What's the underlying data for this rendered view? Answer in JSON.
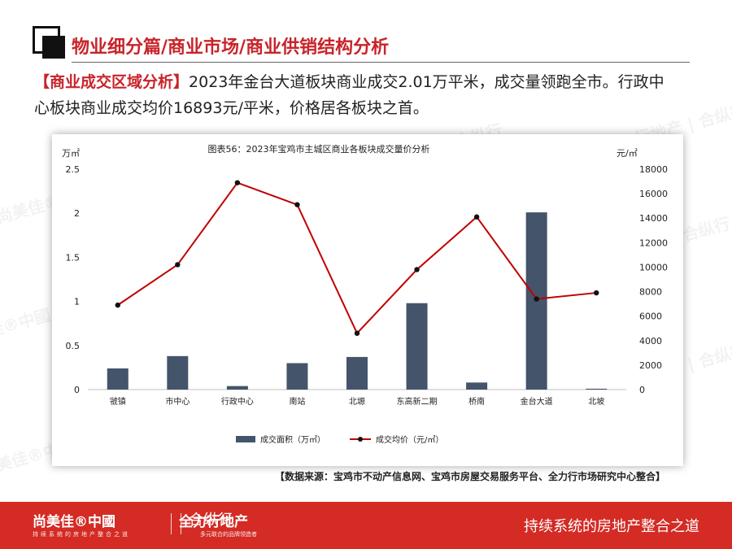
{
  "header": {
    "title": "物业细分篇/商业市场/商业供销结构分析"
  },
  "summary": {
    "tag": "【商业成交区域分析】",
    "text": "2023年金台大道板块商业成交2.01万平米，成交量领跑全市。行政中心板块商业成交均价16893元/平米，价格居各板块之首。"
  },
  "chart_data": {
    "type": "bar",
    "title": "图表56：2023年宝鸡市主城区商业各板块成交量价分析",
    "categories": [
      "虢镇",
      "市中心",
      "行政中心",
      "南站",
      "北塬",
      "东高新二期",
      "桥南",
      "金台大道",
      "北坡"
    ],
    "left_axis": {
      "unit": "万㎡",
      "ylim": [
        0,
        2.5
      ],
      "ticks": [
        "0",
        "0.5",
        "1",
        "1.5",
        "2",
        "2.5"
      ]
    },
    "right_axis": {
      "unit": "元/㎡",
      "ylim": [
        0,
        18000
      ],
      "ticks": [
        "0",
        "2000",
        "4000",
        "6000",
        "8000",
        "10000",
        "12000",
        "14000",
        "16000",
        "18000"
      ]
    },
    "series": [
      {
        "name": "成交面积（万㎡）",
        "type": "bar",
        "axis": "left",
        "color": "#44546a",
        "values": [
          0.24,
          0.38,
          0.04,
          0.3,
          0.37,
          0.98,
          0.08,
          2.01,
          0.01
        ]
      },
      {
        "name": "成交均价（元/㎡）",
        "type": "line",
        "axis": "right",
        "color": "#c00000",
        "values": [
          6900,
          10200,
          16893,
          15100,
          4600,
          9800,
          14100,
          7400,
          7900
        ]
      }
    ],
    "legend_position": "bottom",
    "grid": false
  },
  "source": {
    "text": "【数据来源：宝鸡市不动产信息网、宝鸡市房屋交易服务平台、全力行市场研究中心整合】"
  },
  "footer": {
    "brand1": "尚美佳®中國",
    "brand1_sub": "持续系统的房地产整合之道",
    "brand2": "全力行地产",
    "brand3": "合纵行",
    "brand3_sub": "多元联合的品牌领造者",
    "slogan": "持续系统的房地产整合之道"
  },
  "watermark": {
    "text": "尚美佳®中國 | 全力行地产 | 合纵行"
  },
  "colors": {
    "accent": "#c8242a",
    "footer_bg": "#d42b25",
    "bar": "#44546a",
    "line": "#c00000"
  }
}
